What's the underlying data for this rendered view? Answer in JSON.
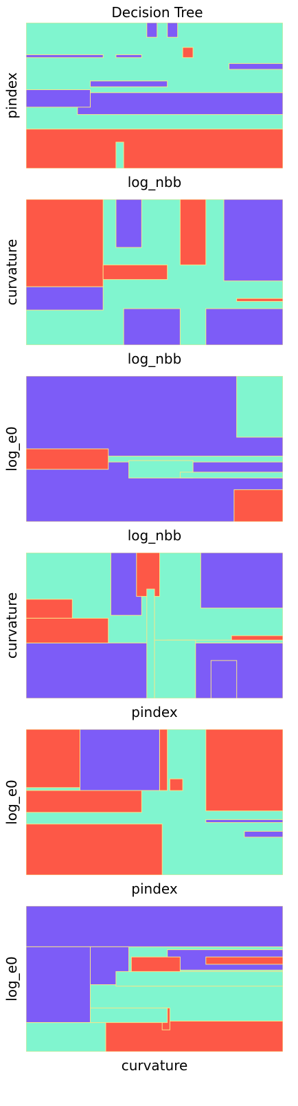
{
  "figure": {
    "title": "Decision Tree"
  },
  "colors": {
    "class_a": "#7d5cf7",
    "class_b": "#80f5cf",
    "class_c": "#fd5847",
    "boundary": "#f7e58a"
  },
  "chart_data": [
    {
      "type": "heatmap",
      "title": "Decision Tree",
      "xlabel": "log_nbb",
      "ylabel": "pindex",
      "xlim": [
        0,
        1
      ],
      "ylim": [
        0,
        1
      ],
      "grid": false,
      "regions": [
        {
          "class": "class_b",
          "x": [
            0,
            1
          ],
          "y": [
            0,
            1
          ]
        },
        {
          "class": "class_c",
          "x": [
            0,
            1
          ],
          "y": [
            0,
            0.27
          ]
        },
        {
          "class": "class_a",
          "x": [
            0.2,
            1
          ],
          "y": [
            0.37,
            0.52
          ]
        },
        {
          "class": "class_a",
          "x": [
            0,
            0.25
          ],
          "y": [
            0.42,
            0.54
          ]
        },
        {
          "class": "class_a",
          "x": [
            0.47,
            0.51
          ],
          "y": [
            0.9,
            1
          ]
        },
        {
          "class": "class_a",
          "x": [
            0.55,
            0.59
          ],
          "y": [
            0.9,
            1
          ]
        },
        {
          "class": "class_c",
          "x": [
            0.61,
            0.65
          ],
          "y": [
            0.76,
            0.83
          ]
        },
        {
          "class": "class_a",
          "x": [
            0.79,
            1
          ],
          "y": [
            0.68,
            0.72
          ]
        },
        {
          "class": "class_a",
          "x": [
            0,
            0.3
          ],
          "y": [
            0.76,
            0.78
          ]
        },
        {
          "class": "class_b",
          "x": [
            0.35,
            0.38
          ],
          "y": [
            0,
            0.18
          ]
        },
        {
          "class": "class_a",
          "x": [
            0.25,
            0.55
          ],
          "y": [
            0.56,
            0.6
          ]
        },
        {
          "class": "class_a",
          "x": [
            0.35,
            0.45
          ],
          "y": [
            0.76,
            0.78
          ]
        }
      ]
    },
    {
      "type": "heatmap",
      "xlabel": "log_nbb",
      "ylabel": "curvature",
      "xlim": [
        0,
        1
      ],
      "ylim": [
        0,
        1
      ],
      "grid": false,
      "regions": [
        {
          "class": "class_b",
          "x": [
            0,
            1
          ],
          "y": [
            0,
            1
          ]
        },
        {
          "class": "class_c",
          "x": [
            0,
            0.3
          ],
          "y": [
            0.4,
            1
          ]
        },
        {
          "class": "class_a",
          "x": [
            0.35,
            0.45
          ],
          "y": [
            0.67,
            1
          ]
        },
        {
          "class": "class_c",
          "x": [
            0.6,
            0.7
          ],
          "y": [
            0.55,
            1
          ]
        },
        {
          "class": "class_a",
          "x": [
            0.77,
            1
          ],
          "y": [
            0.44,
            1
          ]
        },
        {
          "class": "class_a",
          "x": [
            0,
            0.3
          ],
          "y": [
            0.24,
            0.4
          ]
        },
        {
          "class": "class_a",
          "x": [
            0.38,
            0.6
          ],
          "y": [
            0,
            0.25
          ]
        },
        {
          "class": "class_a",
          "x": [
            0.7,
            1
          ],
          "y": [
            0,
            0.25
          ]
        },
        {
          "class": "class_c",
          "x": [
            0.3,
            0.55
          ],
          "y": [
            0.45,
            0.55
          ]
        },
        {
          "class": "class_c",
          "x": [
            0.82,
            1
          ],
          "y": [
            0.3,
            0.32
          ]
        }
      ]
    },
    {
      "type": "heatmap",
      "xlabel": "log_nbb",
      "ylabel": "log_e0",
      "xlim": [
        0,
        1
      ],
      "ylim": [
        0,
        1
      ],
      "grid": false,
      "regions": [
        {
          "class": "class_a",
          "x": [
            0,
            1
          ],
          "y": [
            0,
            1
          ]
        },
        {
          "class": "class_b",
          "x": [
            0.82,
            1
          ],
          "y": [
            0.58,
            1
          ]
        },
        {
          "class": "class_c",
          "x": [
            0.81,
            1
          ],
          "y": [
            0,
            0.22
          ]
        },
        {
          "class": "class_b",
          "x": [
            0.3,
            1
          ],
          "y": [
            0.41,
            0.45
          ]
        },
        {
          "class": "class_c",
          "x": [
            0,
            0.32
          ],
          "y": [
            0.36,
            0.5
          ]
        },
        {
          "class": "class_b",
          "x": [
            0.4,
            0.65
          ],
          "y": [
            0.3,
            0.42
          ]
        },
        {
          "class": "class_b",
          "x": [
            0.6,
            1
          ],
          "y": [
            0.3,
            0.34
          ]
        }
      ]
    },
    {
      "type": "heatmap",
      "xlabel": "pindex",
      "ylabel": "curvature",
      "xlim": [
        0,
        1
      ],
      "ylim": [
        0,
        1
      ],
      "grid": false,
      "regions": [
        {
          "class": "class_b",
          "x": [
            0,
            1
          ],
          "y": [
            0,
            1
          ]
        },
        {
          "class": "class_a",
          "x": [
            0,
            1
          ],
          "y": [
            0,
            0.38
          ]
        },
        {
          "class": "class_c",
          "x": [
            0,
            0.18
          ],
          "y": [
            0.55,
            0.68
          ]
        },
        {
          "class": "class_c",
          "x": [
            0,
            0.32
          ],
          "y": [
            0.38,
            0.55
          ]
        },
        {
          "class": "class_a",
          "x": [
            0.33,
            0.45
          ],
          "y": [
            0.57,
            1
          ]
        },
        {
          "class": "class_c",
          "x": [
            0.43,
            0.52
          ],
          "y": [
            0.7,
            1
          ]
        },
        {
          "class": "class_a",
          "x": [
            0.68,
            1
          ],
          "y": [
            0.62,
            1
          ]
        },
        {
          "class": "class_c",
          "x": [
            0.8,
            1
          ],
          "y": [
            0.39,
            0.43
          ]
        },
        {
          "class": "class_b",
          "x": [
            0.55,
            1
          ],
          "y": [
            0.38,
            0.4
          ]
        },
        {
          "class": "class_b",
          "x": [
            0.5,
            0.66
          ],
          "y": [
            0,
            0.4
          ]
        },
        {
          "class": "class_a",
          "x": [
            0.72,
            0.82
          ],
          "y": [
            0,
            0.26
          ]
        },
        {
          "class": "class_b",
          "x": [
            0.47,
            0.5
          ],
          "y": [
            0,
            0.75
          ]
        }
      ]
    },
    {
      "type": "heatmap",
      "xlabel": "pindex",
      "ylabel": "log_e0",
      "xlim": [
        0,
        1
      ],
      "ylim": [
        0,
        1
      ],
      "grid": false,
      "regions": [
        {
          "class": "class_b",
          "x": [
            0,
            1
          ],
          "y": [
            0,
            1
          ]
        },
        {
          "class": "class_c",
          "x": [
            0,
            0.21
          ],
          "y": [
            0.6,
            1
          ]
        },
        {
          "class": "class_a",
          "x": [
            0.21,
            0.52
          ],
          "y": [
            0.58,
            1
          ]
        },
        {
          "class": "class_c",
          "x": [
            0.7,
            1
          ],
          "y": [
            0.44,
            1
          ]
        },
        {
          "class": "class_c",
          "x": [
            0,
            0.45
          ],
          "y": [
            0.43,
            0.58
          ]
        },
        {
          "class": "class_c",
          "x": [
            0,
            0.53
          ],
          "y": [
            0,
            0.35
          ]
        },
        {
          "class": "class_c",
          "x": [
            0.56,
            0.61
          ],
          "y": [
            0.58,
            0.66
          ]
        },
        {
          "class": "class_a",
          "x": [
            0.85,
            1
          ],
          "y": [
            0.26,
            0.3
          ]
        },
        {
          "class": "class_c",
          "x": [
            0.52,
            0.55
          ],
          "y": [
            0.58,
            1
          ]
        },
        {
          "class": "class_a",
          "x": [
            0.7,
            1
          ],
          "y": [
            0.36,
            0.38
          ]
        }
      ]
    },
    {
      "type": "heatmap",
      "xlabel": "curvature",
      "ylabel": "log_e0",
      "xlim": [
        0,
        1
      ],
      "ylim": [
        0,
        1
      ],
      "grid": false,
      "regions": [
        {
          "class": "class_b",
          "x": [
            0,
            1
          ],
          "y": [
            0,
            1
          ]
        },
        {
          "class": "class_a",
          "x": [
            0,
            1
          ],
          "y": [
            0.72,
            1
          ]
        },
        {
          "class": "class_a",
          "x": [
            0,
            0.25
          ],
          "y": [
            0.2,
            0.72
          ]
        },
        {
          "class": "class_c",
          "x": [
            0.31,
            1
          ],
          "y": [
            0,
            0.21
          ]
        },
        {
          "class": "class_b",
          "x": [
            0,
            0.31
          ],
          "y": [
            0,
            0.2
          ]
        },
        {
          "class": "class_a",
          "x": [
            0.25,
            0.4
          ],
          "y": [
            0.46,
            0.72
          ]
        },
        {
          "class": "class_a",
          "x": [
            0.55,
            1
          ],
          "y": [
            0.56,
            0.7
          ]
        },
        {
          "class": "class_c",
          "x": [
            0.7,
            1
          ],
          "y": [
            0.6,
            0.65
          ]
        },
        {
          "class": "class_c",
          "x": [
            0.41,
            0.6
          ],
          "y": [
            0.45,
            0.65
          ]
        },
        {
          "class": "class_b",
          "x": [
            0.35,
            1
          ],
          "y": [
            0.45,
            0.55
          ]
        },
        {
          "class": "class_c",
          "x": [
            0.53,
            0.56
          ],
          "y": [
            0.15,
            0.3
          ]
        },
        {
          "class": "class_b",
          "x": [
            0.25,
            0.55
          ],
          "y": [
            0.2,
            0.3
          ]
        }
      ]
    }
  ]
}
